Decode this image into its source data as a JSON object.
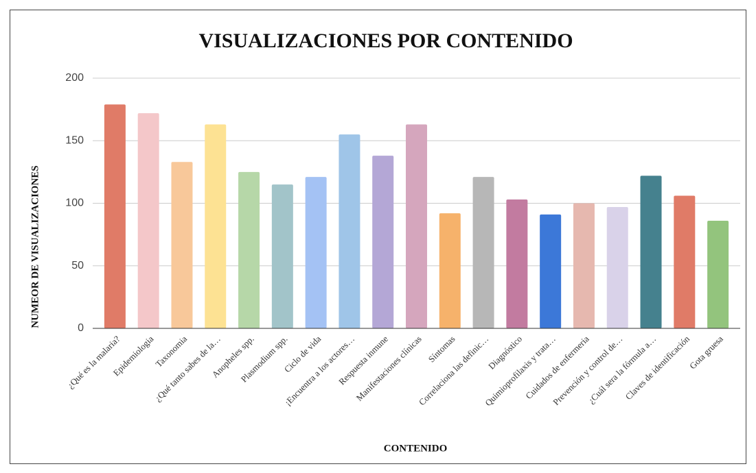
{
  "chart_data": {
    "type": "bar",
    "title": "VISUALIZACIONES POR CONTENIDO",
    "x_label": "CONTENIDO",
    "y_label": "NUMEOR DE VISUALIZACIONES",
    "categories": [
      "¿Qué es la malaria?",
      "Epidemiologia",
      "Taxonomia",
      "¿Qué tanto sabes de la…",
      "Anopheles spp.",
      "Plasmodium spp.",
      "Ciclo de vida",
      "¡Encuentra a los actores…",
      "Respuesta inmune",
      "Manifestaciones clínicas",
      "Síntomas",
      "Correlaciona las definic…",
      "Diagnóstico",
      "Quimioprofilaxis y trata…",
      "Cuidados de enfermeria",
      "Prevención y control de…",
      "¿Cuál sera la fórmula a…",
      "Claves de identificación",
      "Gota gruesa"
    ],
    "values": [
      179,
      172,
      133,
      163,
      125,
      115,
      121,
      155,
      138,
      163,
      92,
      121,
      103,
      91,
      100,
      97,
      122,
      106,
      86
    ],
    "colors": [
      "#e07b67",
      "#f4c7c9",
      "#f8c89a",
      "#fde293",
      "#b6d7a8",
      "#a2c4c9",
      "#a4c2f4",
      "#9fc5e8",
      "#b4a7d6",
      "#d5a6bd",
      "#f6b26b",
      "#b7b7b7",
      "#c27ba0",
      "#3c78d8",
      "#e6b8af",
      "#d9d2e9",
      "#45818e",
      "#e07b67",
      "#93c47d"
    ],
    "ylim": [
      0,
      200
    ],
    "yticks": [
      0,
      50,
      100,
      150,
      200
    ],
    "grid": true
  }
}
